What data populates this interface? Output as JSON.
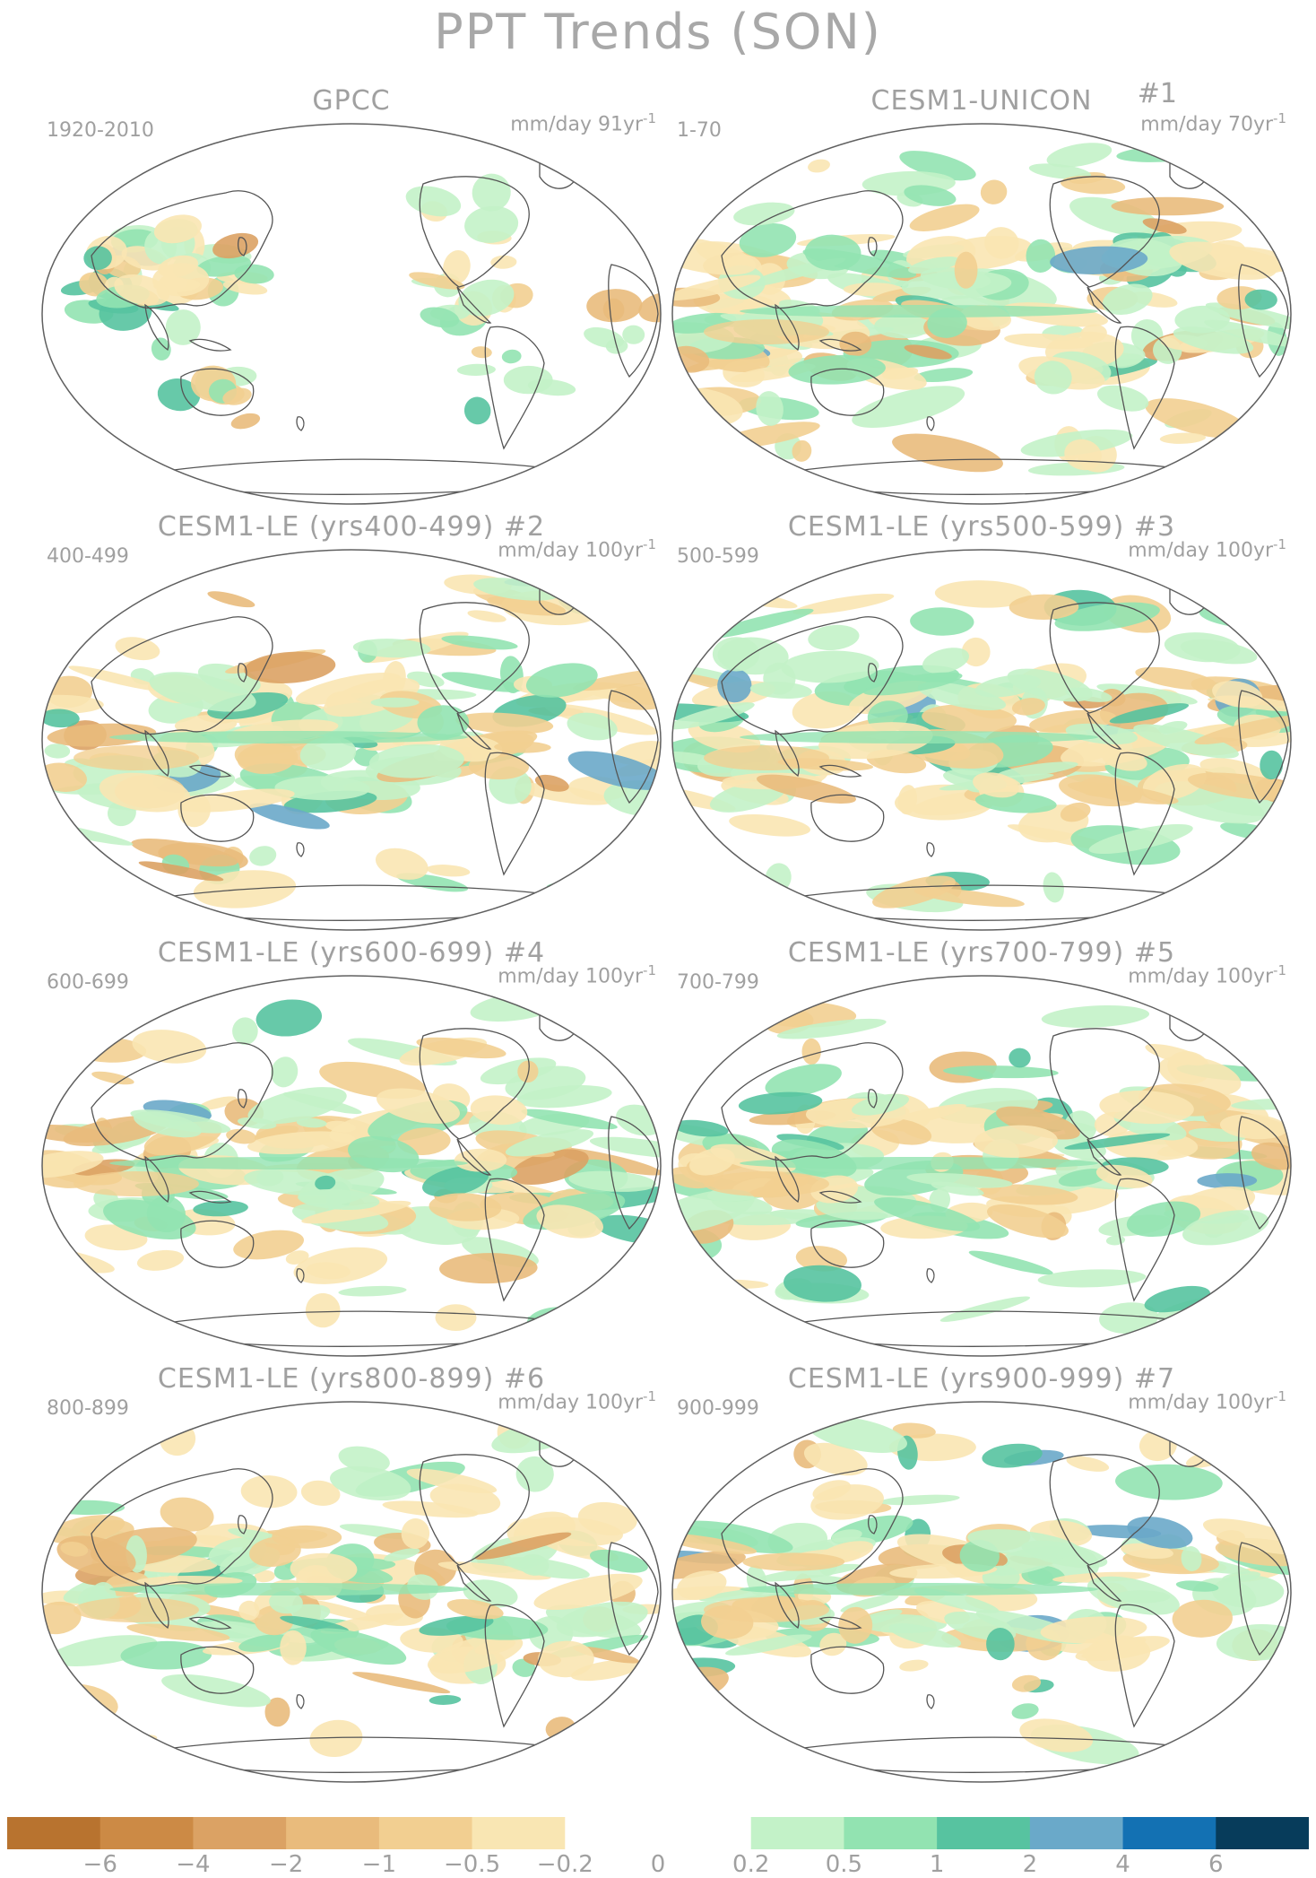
{
  "title": "PPT Trends (SON)",
  "panels": [
    {
      "title": "GPCC",
      "tag": "",
      "period": "1920-2010",
      "units_main": "mm/day 91yr",
      "units_sup": "-1",
      "seed": 1,
      "intensity": 0.35,
      "land_only": true
    },
    {
      "title": "CESM1-UNICON",
      "tag": "#1",
      "period": "1-70",
      "units_main": "mm/day 70yr",
      "units_sup": "-1",
      "seed": 2,
      "intensity": 1.0,
      "land_only": false
    },
    {
      "title": "CESM1-LE (yrs400-499)",
      "tag": "#2",
      "period": "400-499",
      "units_main": "mm/day 100yr",
      "units_sup": "-1",
      "seed": 3,
      "intensity": 0.8,
      "land_only": false
    },
    {
      "title": "CESM1-LE (yrs500-599)",
      "tag": "#3",
      "period": "500-599",
      "units_main": "mm/day 100yr",
      "units_sup": "-1",
      "seed": 4,
      "intensity": 0.95,
      "land_only": false
    },
    {
      "title": "CESM1-LE (yrs600-699)",
      "tag": "#4",
      "period": "600-699",
      "units_main": "mm/day 100yr",
      "units_sup": "-1",
      "seed": 5,
      "intensity": 0.8,
      "land_only": false
    },
    {
      "title": "CESM1-LE (yrs700-799)",
      "tag": "#5",
      "period": "700-799",
      "units_main": "mm/day 100yr",
      "units_sup": "-1",
      "seed": 6,
      "intensity": 0.8,
      "land_only": false
    },
    {
      "title": "CESM1-LE (yrs800-899)",
      "tag": "#6",
      "period": "800-899",
      "units_main": "mm/day 100yr",
      "units_sup": "-1",
      "seed": 7,
      "intensity": 0.85,
      "land_only": false
    },
    {
      "title": "CESM1-LE (yrs900-999)",
      "tag": "#7",
      "period": "900-999",
      "units_main": "mm/day 100yr",
      "units_sup": "-1",
      "seed": 8,
      "intensity": 0.8,
      "land_only": false
    }
  ],
  "colorbar": {
    "colors": [
      "#b8732f",
      "#cc8a45",
      "#dba264",
      "#e9bb7c",
      "#f2cf91",
      "#f9e6b3",
      "#ffffff",
      "#ffffff",
      "#c3f2c8",
      "#92e3b1",
      "#57c3a0",
      "#6aa9c9",
      "#1371b3",
      "#073c5b"
    ],
    "labels": [
      "−6",
      "−4",
      "−2",
      "−1",
      "−0.5",
      "−0.2",
      "0",
      "0.2",
      "0.5",
      "1",
      "2",
      "4",
      "6"
    ]
  }
}
